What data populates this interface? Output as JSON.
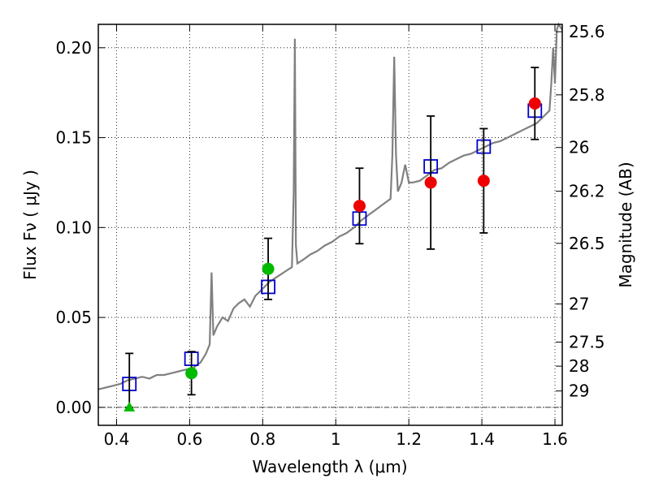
{
  "chart_data": {
    "type": "scatter",
    "xlabel": "Wavelength  λ (μm)",
    "ylabel": "Flux  Fν  ( μJy )",
    "y2label": "Magnitude (AB)",
    "xlim": [
      0.35,
      1.62
    ],
    "ylim": [
      -0.01,
      0.213
    ],
    "grid": true,
    "x_ticks": [
      0.4,
      0.6,
      0.8,
      1.0,
      1.2,
      1.4,
      1.6
    ],
    "x_tick_labels": [
      "0.4",
      "0.6",
      "0.8",
      "1",
      "1.2",
      "1.4",
      "1.6"
    ],
    "y_ticks": [
      0.0,
      0.05,
      0.1,
      0.15,
      0.2
    ],
    "y_tick_labels": [
      "0.00",
      "0.05",
      "0.10",
      "0.15",
      "0.20"
    ],
    "right_axis_ticks": [
      {
        "label": "25.6",
        "flux": 0.2089
      },
      {
        "label": "25.8",
        "flux": 0.1738
      },
      {
        "label": "26",
        "flux": 0.1445
      },
      {
        "label": "26.2",
        "flux": 0.1202
      },
      {
        "label": "26.5",
        "flux": 0.0912
      },
      {
        "label": "27",
        "flux": 0.0575
      },
      {
        "label": "27.5",
        "flux": 0.0363
      },
      {
        "label": "28",
        "flux": 0.0229
      },
      {
        "label": "29",
        "flux": 0.0091
      }
    ],
    "model_spectrum": {
      "color": "#808080",
      "x": [
        0.35,
        0.37,
        0.39,
        0.41,
        0.43,
        0.45,
        0.47,
        0.49,
        0.51,
        0.53,
        0.55,
        0.57,
        0.59,
        0.61,
        0.63,
        0.645,
        0.655,
        0.66,
        0.665,
        0.675,
        0.69,
        0.705,
        0.72,
        0.735,
        0.75,
        0.765,
        0.78,
        0.795,
        0.81,
        0.82,
        0.835,
        0.85,
        0.865,
        0.88,
        0.885,
        0.888,
        0.891,
        0.895,
        0.91,
        0.93,
        0.95,
        0.97,
        0.99,
        1.01,
        1.03,
        1.05,
        1.07,
        1.09,
        1.11,
        1.13,
        1.15,
        1.155,
        1.16,
        1.165,
        1.17,
        1.18,
        1.19,
        1.2,
        1.21,
        1.23,
        1.25,
        1.27,
        1.29,
        1.31,
        1.33,
        1.35,
        1.37,
        1.39,
        1.41,
        1.43,
        1.45,
        1.47,
        1.49,
        1.51,
        1.53,
        1.55,
        1.57,
        1.585,
        1.59,
        1.595,
        1.6,
        1.605,
        1.61,
        1.62
      ],
      "y": [
        0.01,
        0.011,
        0.012,
        0.013,
        0.015,
        0.016,
        0.017,
        0.016,
        0.018,
        0.018,
        0.019,
        0.02,
        0.021,
        0.022,
        0.025,
        0.03,
        0.035,
        0.075,
        0.04,
        0.045,
        0.05,
        0.048,
        0.055,
        0.058,
        0.06,
        0.056,
        0.062,
        0.065,
        0.068,
        0.07,
        0.072,
        0.074,
        0.076,
        0.078,
        0.12,
        0.205,
        0.09,
        0.08,
        0.082,
        0.085,
        0.087,
        0.09,
        0.092,
        0.095,
        0.097,
        0.1,
        0.104,
        0.107,
        0.11,
        0.113,
        0.116,
        0.14,
        0.195,
        0.14,
        0.12,
        0.125,
        0.135,
        0.125,
        0.125,
        0.126,
        0.129,
        0.132,
        0.133,
        0.136,
        0.138,
        0.14,
        0.141,
        0.143,
        0.145,
        0.147,
        0.148,
        0.15,
        0.152,
        0.154,
        0.156,
        0.158,
        0.162,
        0.165,
        0.18,
        0.2,
        0.18,
        0.21,
        0.213,
        0.21
      ]
    },
    "series": [
      {
        "marker": "open-square",
        "color": "#0000cc",
        "x": [
          0.435,
          0.605,
          0.815,
          1.065,
          1.26,
          1.405,
          1.545
        ],
        "y": [
          0.013,
          0.027,
          0.067,
          0.105,
          0.134,
          0.145,
          0.165
        ]
      },
      {
        "marker": "filled-circle",
        "color": "#00bb00",
        "x": [
          0.605,
          0.815
        ],
        "y": [
          0.019,
          0.077
        ],
        "yerr_low": [
          0.007,
          0.06
        ],
        "yerr_high": [
          0.031,
          0.094
        ]
      },
      {
        "marker": "filled-circle",
        "color": "#ee0000",
        "x": [
          1.065,
          1.26,
          1.405,
          1.545
        ],
        "y": [
          0.112,
          0.125,
          0.126,
          0.169
        ],
        "yerr_low": [
          0.091,
          0.088,
          0.097,
          0.149
        ],
        "yerr_high": [
          0.133,
          0.162,
          0.155,
          0.189
        ]
      },
      {
        "marker": "filled-triangle",
        "color": "#00bb00",
        "x": [
          0.435
        ],
        "y": [
          0.0
        ],
        "yerr_low": [
          0.0
        ],
        "yerr_high": [
          0.03
        ]
      }
    ]
  }
}
